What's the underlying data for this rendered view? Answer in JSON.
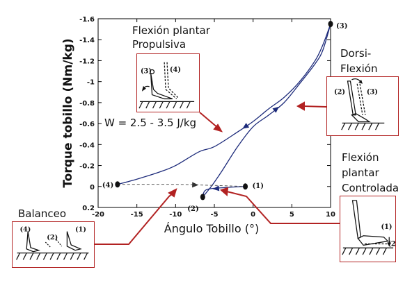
{
  "chart_data": {
    "type": "line",
    "xlabel": "Ángulo Tobillo (°)",
    "ylabel": "Torque tobillo (Nm/kg)",
    "xlim": [
      -20,
      10
    ],
    "ylim": [
      0.2,
      -1.6
    ],
    "x_ticks": [
      "-20",
      "-15",
      "-10",
      "-5",
      "0",
      "5",
      "10"
    ],
    "y_ticks": [
      "-1.6",
      "-1.4",
      "-1.2",
      "-1",
      "-0.8",
      "-0.6",
      "-0.4",
      "-0.2",
      "0",
      "0.2"
    ],
    "grid": false,
    "series": [
      {
        "segment": "loading",
        "x": [
          -1,
          -3.5,
          -6,
          -6.5
        ],
        "y": [
          0.0,
          0.01,
          0.03,
          0.1
        ]
      },
      {
        "segment": "dorsiflexion",
        "x": [
          -6.5,
          -5.3,
          -4,
          -2,
          0,
          2,
          4,
          6,
          8,
          9,
          10
        ],
        "y": [
          0.1,
          -0.01,
          -0.15,
          -0.38,
          -0.57,
          -0.68,
          -0.8,
          -0.98,
          -1.17,
          -1.3,
          -1.55
        ]
      },
      {
        "segment": "plantarflexion",
        "x": [
          10,
          9,
          8,
          6,
          4,
          2,
          0,
          -2,
          -5,
          -7,
          -10,
          -12,
          -15,
          -17.5
        ],
        "y": [
          -1.55,
          -1.35,
          -1.2,
          -1.0,
          -0.85,
          -0.74,
          -0.62,
          -0.52,
          -0.38,
          -0.33,
          -0.2,
          -0.14,
          -0.07,
          -0.02
        ]
      },
      {
        "segment": "swing",
        "dashed": true,
        "x": [
          -17.5,
          -10,
          -5,
          -1
        ],
        "y": [
          -0.02,
          -0.02,
          -0.01,
          0.0
        ]
      }
    ],
    "points": [
      {
        "label": "(1)",
        "x": -1,
        "y": 0.0
      },
      {
        "label": "(2)",
        "x": -6.5,
        "y": 0.1
      },
      {
        "label": "(3)",
        "x": 10,
        "y": -1.55
      },
      {
        "label": "(4)",
        "x": -17.5,
        "y": -0.02
      }
    ],
    "annotations": {
      "work": "W = 2.5 - 3.5 J/kg",
      "propulsive_line1": "Flexión plantar",
      "propulsive_line2": "Propulsiva",
      "dorsi_line1": "Dorsi-",
      "dorsi_line2": "Flexión",
      "controlled_line1": "Flexión",
      "controlled_line2": "plantar",
      "controlled_line3": "Controlada",
      "swing": "Balanceo"
    },
    "insets": {
      "propulsive": [
        "(3)",
        "(4)"
      ],
      "dorsi": [
        "(2)",
        "(3)"
      ],
      "controlled": [
        "(1)",
        "(2)"
      ],
      "swing": [
        "(4)",
        "(2)",
        "(1)"
      ]
    },
    "colors": {
      "curve": "#1c2a7a",
      "dashed": "#555555",
      "callout": "#b22222",
      "text": "#111111"
    }
  }
}
